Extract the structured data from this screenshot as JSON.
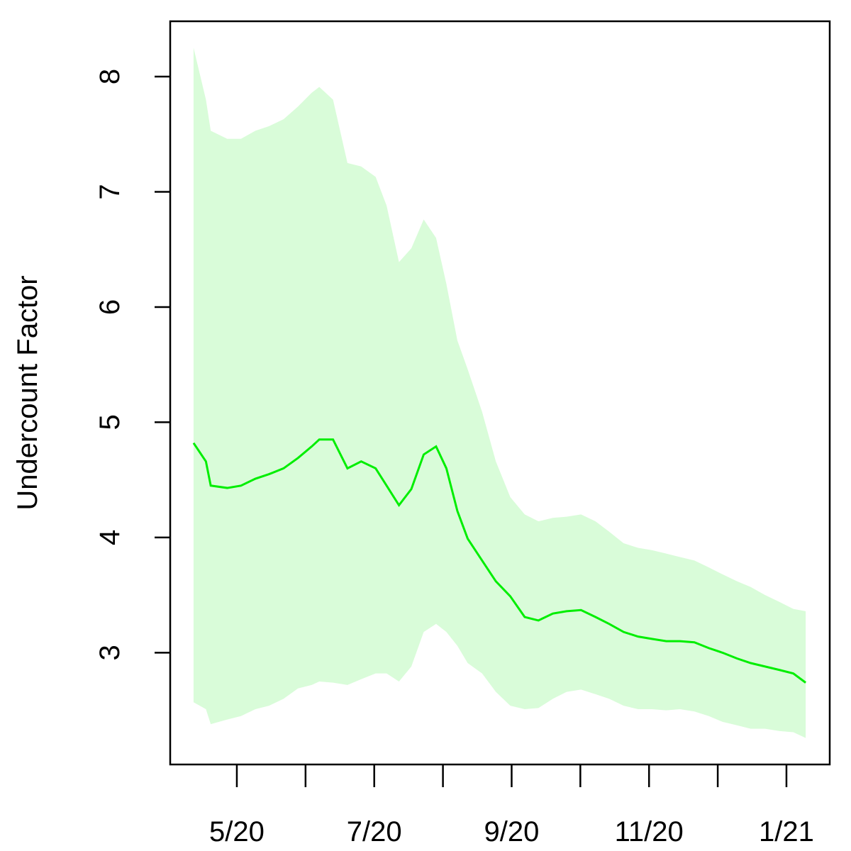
{
  "chart_data": {
    "type": "line",
    "ylabel": "Undercount Factor",
    "x": [
      4.37,
      4.55,
      4.62,
      4.86,
      5.06,
      5.27,
      5.47,
      5.68,
      5.89,
      6.09,
      6.2,
      6.4,
      6.61,
      6.81,
      7.02,
      7.18,
      7.36,
      7.54,
      7.72,
      7.9,
      8.05,
      8.21,
      8.36,
      8.57,
      8.77,
      8.98,
      9.19,
      9.39,
      9.6,
      9.8,
      10.01,
      10.22,
      10.42,
      10.63,
      10.84,
      11.04,
      11.25,
      11.45,
      11.66,
      11.87,
      12.07,
      12.28,
      12.48,
      12.69,
      12.9,
      13.1,
      13.28
    ],
    "series": [
      {
        "color": "#00ee00",
        "values": [
          4.82,
          4.66,
          4.45,
          4.43,
          4.45,
          4.51,
          4.55,
          4.6,
          4.69,
          4.79,
          4.85,
          4.85,
          4.6,
          4.66,
          4.6,
          4.45,
          4.28,
          4.42,
          4.72,
          4.79,
          4.6,
          4.23,
          3.99,
          3.8,
          3.62,
          3.49,
          3.31,
          3.28,
          3.34,
          3.36,
          3.37,
          3.31,
          3.25,
          3.18,
          3.14,
          3.12,
          3.1,
          3.1,
          3.09,
          3.04,
          3.0,
          2.95,
          2.91,
          2.88,
          2.85,
          2.82,
          2.74
        ]
      }
    ],
    "band": {
      "color": "#d9fcd9",
      "upper": [
        8.25,
        7.8,
        7.53,
        7.46,
        7.46,
        7.53,
        7.57,
        7.63,
        7.74,
        7.86,
        7.91,
        7.8,
        7.25,
        7.22,
        7.13,
        6.88,
        6.39,
        6.51,
        6.76,
        6.6,
        6.2,
        5.71,
        5.46,
        5.09,
        4.66,
        4.35,
        4.2,
        4.14,
        4.17,
        4.18,
        4.2,
        4.14,
        4.05,
        3.95,
        3.91,
        3.89,
        3.86,
        3.83,
        3.8,
        3.74,
        3.68,
        3.62,
        3.57,
        3.5,
        3.44,
        3.38,
        3.36
      ],
      "lower": [
        2.57,
        2.51,
        2.38,
        2.42,
        2.45,
        2.51,
        2.54,
        2.6,
        2.69,
        2.72,
        2.75,
        2.74,
        2.72,
        2.77,
        2.82,
        2.82,
        2.75,
        2.88,
        3.18,
        3.25,
        3.18,
        3.06,
        2.91,
        2.82,
        2.66,
        2.54,
        2.51,
        2.52,
        2.6,
        2.66,
        2.68,
        2.64,
        2.6,
        2.54,
        2.51,
        2.51,
        2.5,
        2.51,
        2.49,
        2.45,
        2.4,
        2.37,
        2.34,
        2.34,
        2.32,
        2.31,
        2.26
      ]
    },
    "xlim": [
      4.03,
      13.63
    ],
    "xticks": [
      {
        "value": 5,
        "label": "5/20"
      },
      {
        "value": 6,
        "label": null
      },
      {
        "value": 7,
        "label": "7/20"
      },
      {
        "value": 8,
        "label": null
      },
      {
        "value": 9,
        "label": "9/20"
      },
      {
        "value": 10,
        "label": null
      },
      {
        "value": 11,
        "label": "11/20"
      },
      {
        "value": 12,
        "label": null
      },
      {
        "value": 13,
        "label": "1/21"
      }
    ],
    "ylim": [
      2.03,
      8.48
    ],
    "yticks": [
      3,
      4,
      5,
      6,
      7,
      8
    ]
  }
}
